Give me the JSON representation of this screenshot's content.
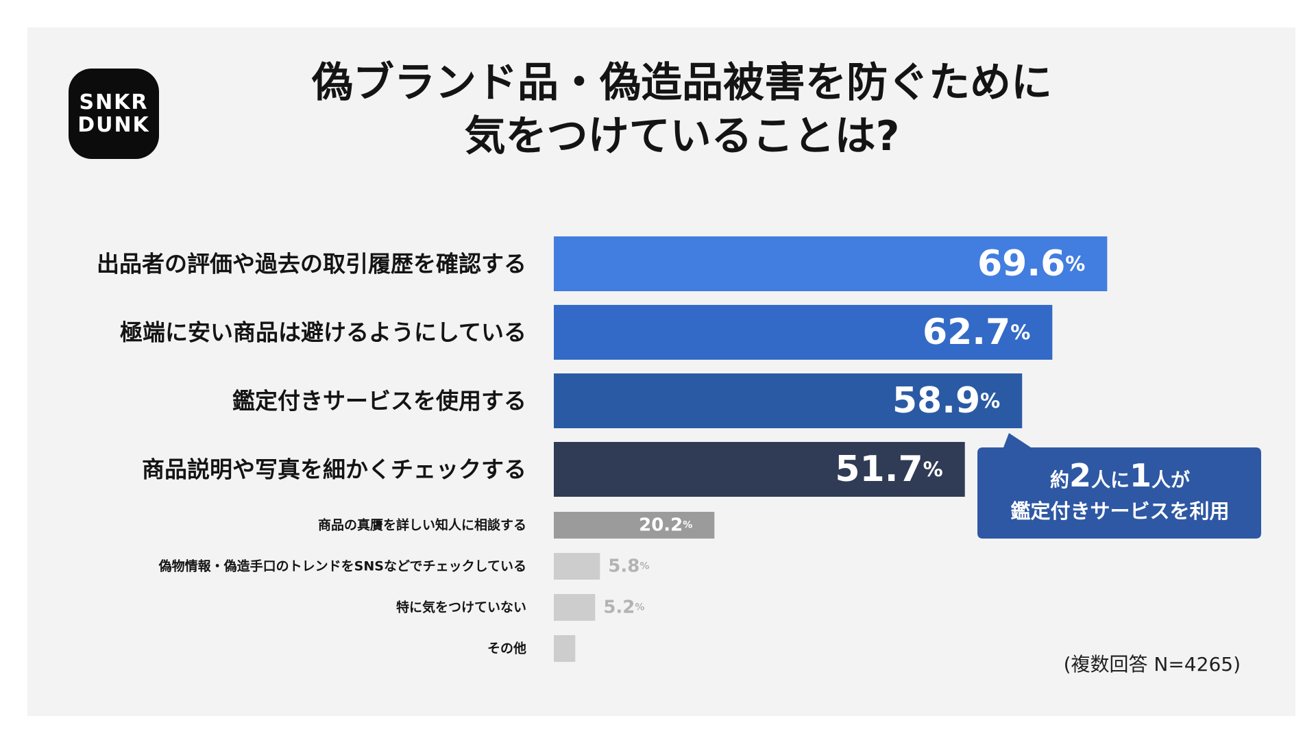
{
  "logo": {
    "line1": "SNKR",
    "line2": "DUNK"
  },
  "title": {
    "line1": "偽ブランド品・偽造品被害を防ぐために",
    "line2": "気をつけていることは?"
  },
  "colors": {
    "background": "#f3f3f3",
    "bar_light_blue": "#427de0",
    "bar_blue": "#336ac7",
    "bar_mid_blue": "#2b5aa4",
    "bar_navy": "#303b55",
    "bar_gray": "#9b9b9b",
    "bar_light_gray": "#cdcdcd",
    "callout": "#2e58a3"
  },
  "chart_data": {
    "type": "bar",
    "orientation": "horizontal",
    "title": "偽ブランド品・偽造品被害を防ぐために気をつけていることは?",
    "unit": "%",
    "categories": [
      "出品者の評価や過去の取引履歴を確認する",
      "極端に安い商品は避けるようにしている",
      "鑑定付きサービスを使用する",
      "商品説明や写真を細かくチェックする",
      "商品の真贋を詳しい知人に相談する",
      "偽物情報・偽造手口のトレンドをSNSなどでチェックしている",
      "特に気をつけていない",
      "その他"
    ],
    "values": [
      69.6,
      62.7,
      58.9,
      51.7,
      20.2,
      5.8,
      5.2,
      2.7
    ],
    "value_labels": [
      "69.6",
      "62.7",
      "58.9",
      "51.7",
      "20.2",
      "5.8",
      "5.2",
      ""
    ],
    "xlim": [
      0,
      100
    ],
    "grid": false,
    "legend": "none"
  },
  "callout": {
    "prefix": "約",
    "num1": "2",
    "mid": "人に",
    "num2": "1",
    "suffix": "人が",
    "line2": "鑑定付きサービスを利用"
  },
  "note": "(複数回答 N=4265)"
}
